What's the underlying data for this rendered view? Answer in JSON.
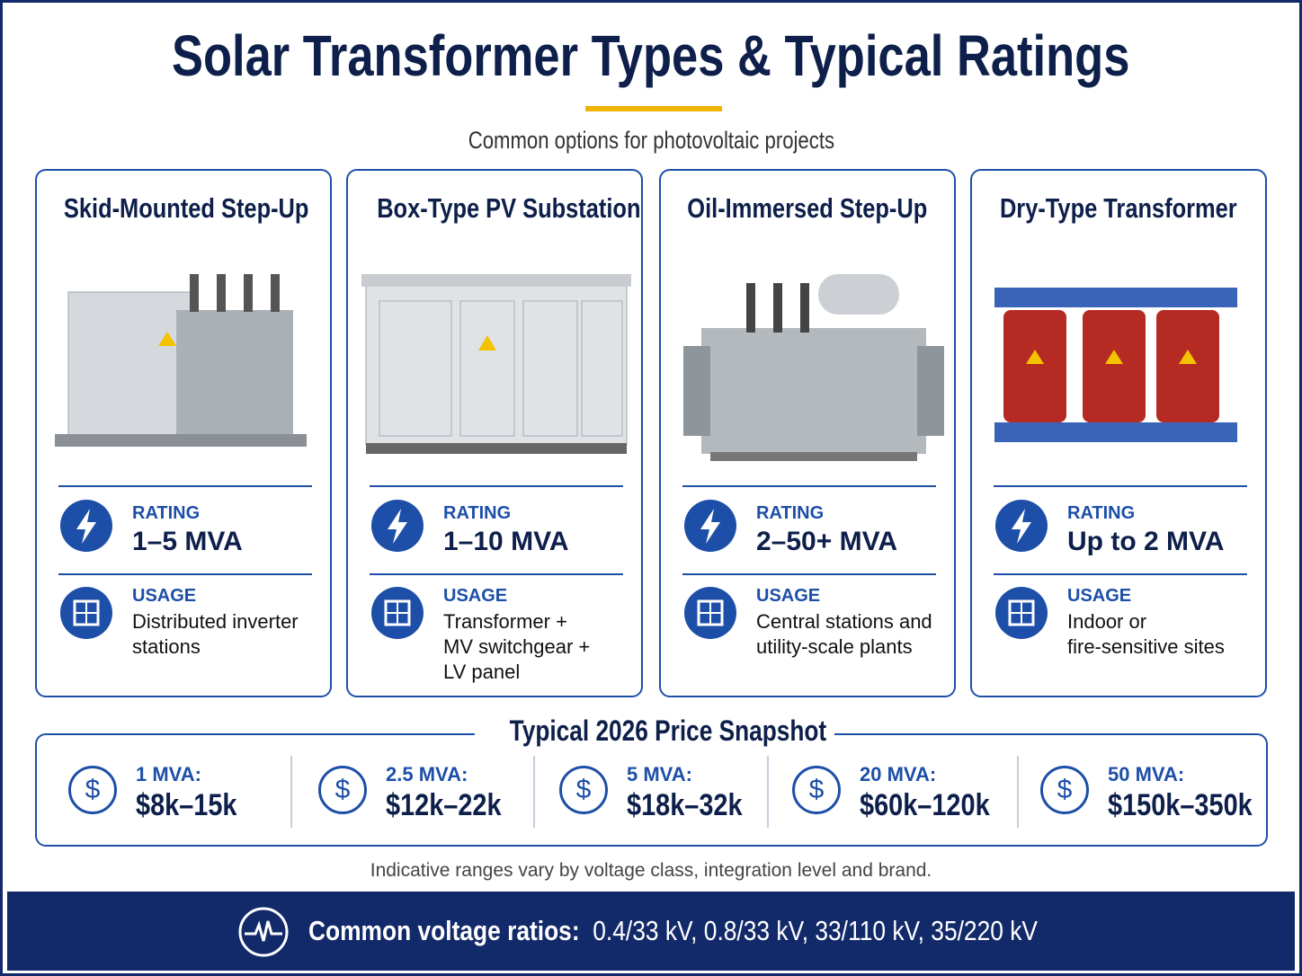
{
  "header": {
    "title": "Solar Transformer Types & Typical Ratings",
    "subtitle": "Common options for photovoltaic projects"
  },
  "cards": [
    {
      "title": "Skid-Mounted Step-Up",
      "rating_label": "RATING",
      "rating": "1–5 MVA",
      "usage_label": "USAGE",
      "usage": [
        "Distributed inverter",
        "stations"
      ]
    },
    {
      "title": "Box-Type PV Substation",
      "rating_label": "RATING",
      "rating": "1–10 MVA",
      "usage_label": "USAGE",
      "usage": [
        "Transformer +",
        "MV switchgear +",
        "LV panel"
      ]
    },
    {
      "title": "Oil-Immersed Step-Up",
      "rating_label": "RATING",
      "rating": "2–50+ MVA",
      "usage_label": "USAGE",
      "usage": [
        "Central stations and",
        "utility-scale plants"
      ]
    },
    {
      "title": "Dry-Type Transformer",
      "rating_label": "RATING",
      "rating": "Up to 2 MVA",
      "usage_label": "USAGE",
      "usage": [
        "Indoor or",
        "fire-sensitive sites"
      ]
    }
  ],
  "prices": {
    "title": "Typical 2026 Price Snapshot",
    "symbol": "$",
    "items": [
      {
        "size": "1 MVA:",
        "range": "$8k–15k"
      },
      {
        "size": "2.5 MVA:",
        "range": "$12k–22k"
      },
      {
        "size": "5 MVA:",
        "range": "$18k–32k"
      },
      {
        "size": "20 MVA:",
        "range": "$60k–120k"
      },
      {
        "size": "50 MVA:",
        "range": "$150k–350k"
      }
    ]
  },
  "footnote": "Indicative ranges vary by voltage class, integration level and brand.",
  "footer": {
    "label": "Common voltage ratios:",
    "values": "0.4/33 kV, 0.8/33 kV, 33/110 kV, 35/220 kV"
  }
}
